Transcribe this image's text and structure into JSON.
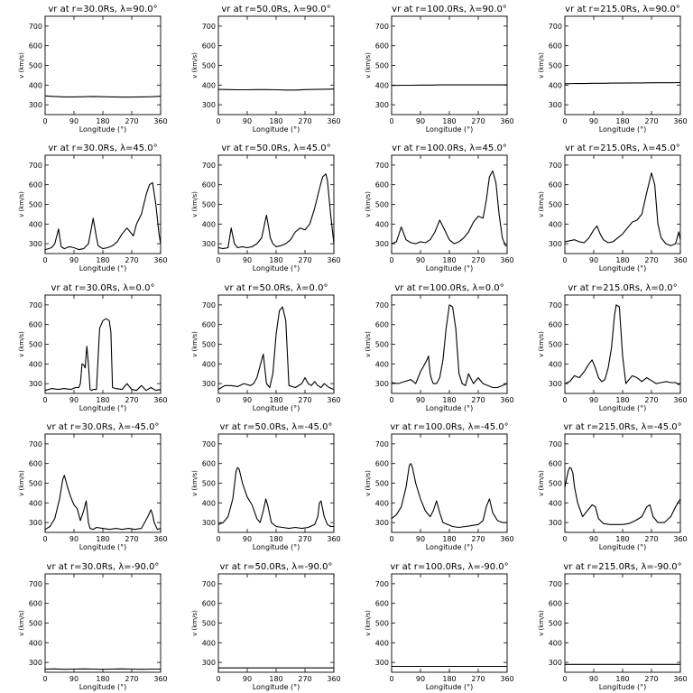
{
  "chart_data": {
    "type": "line",
    "layout": "5x4 grid of small multiples",
    "xlabel": "Longitude (°)",
    "ylabel": "v (km/s)",
    "xlim": [
      0,
      360
    ],
    "ylim": [
      250,
      750
    ],
    "xticks": [
      0,
      90,
      180,
      270,
      360
    ],
    "yticks": [
      300,
      400,
      500,
      600,
      700
    ],
    "grid": false,
    "line_color": "#000000",
    "panels": [
      {
        "title": "vr at r=30.0Rs, λ=90.0°",
        "x": [
          0,
          30,
          60,
          90,
          120,
          150,
          180,
          210,
          240,
          270,
          300,
          330,
          360
        ],
        "y": [
          345,
          342,
          340,
          340,
          341,
          342,
          341,
          340,
          339,
          339,
          340,
          341,
          343
        ]
      },
      {
        "title": "vr at r=50.0Rs, λ=90.0°",
        "x": [
          0,
          30,
          60,
          90,
          120,
          150,
          180,
          210,
          240,
          270,
          300,
          330,
          360
        ],
        "y": [
          378,
          377,
          376,
          376,
          377,
          377,
          376,
          375,
          375,
          377,
          378,
          379,
          380
        ]
      },
      {
        "title": "vr at r=100.0Rs, λ=90.0°",
        "x": [
          0,
          30,
          60,
          90,
          120,
          150,
          180,
          210,
          240,
          270,
          300,
          330,
          360
        ],
        "y": [
          398,
          399,
          399,
          400,
          400,
          401,
          401,
          401,
          401,
          401,
          401,
          401,
          401
        ]
      },
      {
        "title": "vr at r=215.0Rs, λ=90.0°",
        "x": [
          0,
          30,
          60,
          90,
          120,
          150,
          180,
          210,
          240,
          270,
          300,
          330,
          360
        ],
        "y": [
          407,
          408,
          408,
          409,
          409,
          410,
          410,
          411,
          411,
          412,
          412,
          412,
          413
        ]
      },
      {
        "title": "vr at r=30.0Rs, λ=45.0°",
        "x": [
          0,
          10,
          20,
          30,
          42,
          50,
          60,
          75,
          90,
          105,
          120,
          135,
          150,
          158,
          165,
          180,
          195,
          210,
          225,
          240,
          255,
          265,
          275,
          285,
          300,
          315,
          325,
          335,
          345,
          355,
          360
        ],
        "y": [
          270,
          275,
          280,
          300,
          375,
          285,
          275,
          285,
          280,
          270,
          275,
          300,
          430,
          350,
          290,
          275,
          280,
          290,
          310,
          350,
          380,
          360,
          340,
          400,
          450,
          550,
          600,
          610,
          500,
          350,
          300
        ]
      },
      {
        "title": "vr at r=50.0Rs, λ=45.0°",
        "x": [
          0,
          15,
          30,
          40,
          50,
          60,
          75,
          90,
          105,
          120,
          135,
          150,
          155,
          162,
          170,
          180,
          195,
          210,
          225,
          240,
          255,
          270,
          285,
          300,
          315,
          325,
          335,
          340,
          350,
          360
        ],
        "y": [
          280,
          275,
          280,
          380,
          300,
          280,
          285,
          280,
          285,
          300,
          330,
          445,
          400,
          330,
          300,
          285,
          290,
          300,
          320,
          360,
          380,
          370,
          400,
          480,
          580,
          640,
          655,
          620,
          450,
          300
        ]
      },
      {
        "title": "vr at r=100.0Rs, λ=45.0°",
        "x": [
          0,
          15,
          30,
          45,
          60,
          75,
          90,
          105,
          120,
          135,
          150,
          165,
          180,
          195,
          210,
          225,
          240,
          255,
          270,
          285,
          295,
          305,
          315,
          325,
          335,
          345,
          355,
          360
        ],
        "y": [
          300,
          310,
          385,
          320,
          305,
          300,
          310,
          305,
          320,
          360,
          420,
          370,
          320,
          300,
          310,
          330,
          360,
          410,
          440,
          430,
          520,
          640,
          670,
          610,
          450,
          330,
          290,
          290
        ]
      },
      {
        "title": "vr at r=215.0Rs, λ=45.0°",
        "x": [
          0,
          15,
          30,
          45,
          60,
          75,
          90,
          100,
          110,
          120,
          135,
          150,
          165,
          180,
          195,
          210,
          225,
          240,
          255,
          270,
          280,
          290,
          300,
          315,
          330,
          345,
          355,
          360
        ],
        "y": [
          310,
          315,
          320,
          310,
          305,
          330,
          370,
          390,
          350,
          320,
          305,
          310,
          330,
          350,
          380,
          410,
          420,
          450,
          560,
          660,
          600,
          400,
          330,
          300,
          290,
          300,
          360,
          320
        ]
      },
      {
        "title": "vr at r=30.0Rs, λ=0.0°",
        "x": [
          0,
          20,
          40,
          60,
          80,
          95,
          105,
          110,
          115,
          120,
          125,
          130,
          135,
          140,
          145,
          150,
          160,
          170,
          180,
          190,
          200,
          205,
          210,
          220,
          240,
          255,
          270,
          285,
          300,
          315,
          330,
          345,
          360
        ],
        "y": [
          265,
          275,
          270,
          275,
          270,
          280,
          280,
          300,
          400,
          395,
          380,
          490,
          400,
          270,
          265,
          270,
          270,
          580,
          620,
          630,
          620,
          560,
          280,
          275,
          270,
          300,
          270,
          265,
          290,
          265,
          280,
          265,
          270
        ]
      },
      {
        "title": "vr at r=50.0Rs, λ=0.0°",
        "x": [
          0,
          20,
          40,
          60,
          80,
          100,
          110,
          120,
          130,
          135,
          140,
          150,
          160,
          170,
          180,
          190,
          200,
          210,
          220,
          240,
          260,
          270,
          280,
          290,
          300,
          310,
          320,
          330,
          345,
          360
        ],
        "y": [
          270,
          290,
          290,
          285,
          300,
          290,
          300,
          330,
          390,
          420,
          450,
          300,
          280,
          350,
          550,
          670,
          690,
          620,
          290,
          280,
          300,
          330,
          300,
          290,
          310,
          290,
          280,
          300,
          280,
          270
        ]
      },
      {
        "title": "vr at r=100.0Rs, λ=0.0°",
        "x": [
          0,
          20,
          40,
          60,
          75,
          90,
          100,
          110,
          115,
          120,
          125,
          130,
          140,
          150,
          160,
          170,
          180,
          190,
          200,
          210,
          220,
          230,
          240,
          255,
          270,
          285,
          300,
          315,
          330,
          345,
          360
        ],
        "y": [
          305,
          300,
          310,
          320,
          300,
          360,
          390,
          420,
          440,
          350,
          320,
          300,
          300,
          330,
          420,
          580,
          700,
          690,
          580,
          350,
          300,
          290,
          350,
          300,
          330,
          300,
          290,
          280,
          280,
          290,
          300
        ]
      },
      {
        "title": "vr at r=215.0Rs, λ=0.0°",
        "x": [
          0,
          15,
          30,
          45,
          60,
          75,
          85,
          95,
          105,
          115,
          125,
          135,
          145,
          155,
          160,
          170,
          180,
          190,
          200,
          210,
          225,
          240,
          255,
          270,
          285,
          300,
          315,
          330,
          345,
          355,
          360
        ],
        "y": [
          300,
          310,
          340,
          330,
          360,
          400,
          420,
          380,
          330,
          310,
          320,
          380,
          480,
          650,
          700,
          690,
          440,
          300,
          320,
          340,
          330,
          310,
          330,
          315,
          300,
          305,
          310,
          305,
          305,
          295,
          300
        ]
      },
      {
        "title": "vr at r=30.0Rs, λ=-45.0°",
        "x": [
          0,
          15,
          30,
          45,
          55,
          60,
          70,
          80,
          90,
          100,
          110,
          120,
          128,
          135,
          140,
          150,
          160,
          180,
          200,
          220,
          240,
          260,
          280,
          300,
          320,
          330,
          335,
          340,
          350,
          360
        ],
        "y": [
          265,
          280,
          320,
          420,
          520,
          540,
          480,
          430,
          390,
          370,
          310,
          360,
          410,
          300,
          270,
          265,
          275,
          270,
          265,
          270,
          265,
          270,
          265,
          270,
          330,
          365,
          340,
          300,
          265,
          270
        ]
      },
      {
        "title": "vr at r=50.0Rs, λ=-45.0°",
        "x": [
          0,
          15,
          30,
          45,
          55,
          60,
          65,
          75,
          90,
          105,
          120,
          130,
          140,
          148,
          155,
          165,
          180,
          200,
          220,
          240,
          260,
          280,
          300,
          310,
          315,
          320,
          330,
          340,
          350,
          360
        ],
        "y": [
          290,
          300,
          330,
          420,
          560,
          580,
          570,
          500,
          430,
          390,
          320,
          300,
          360,
          420,
          380,
          300,
          280,
          275,
          270,
          275,
          270,
          275,
          290,
          330,
          400,
          410,
          330,
          290,
          280,
          280
        ]
      },
      {
        "title": "vr at r=100.0Rs, λ=-45.0°",
        "x": [
          0,
          15,
          30,
          45,
          55,
          60,
          65,
          75,
          90,
          105,
          120,
          130,
          140,
          150,
          160,
          175,
          190,
          210,
          230,
          250,
          270,
          285,
          295,
          305,
          315,
          330,
          345,
          360
        ],
        "y": [
          320,
          340,
          380,
          480,
          590,
          600,
          580,
          500,
          420,
          360,
          330,
          360,
          410,
          350,
          300,
          290,
          280,
          275,
          280,
          285,
          290,
          310,
          380,
          420,
          350,
          310,
          300,
          300
        ]
      },
      {
        "title": "vr at r=215.0Rs, λ=-45.0°",
        "x": [
          0,
          5,
          10,
          15,
          20,
          25,
          30,
          40,
          55,
          70,
          85,
          95,
          105,
          120,
          140,
          160,
          180,
          200,
          220,
          240,
          255,
          265,
          275,
          290,
          310,
          330,
          345,
          360
        ],
        "y": [
          480,
          520,
          560,
          580,
          575,
          550,
          480,
          400,
          330,
          360,
          390,
          380,
          320,
          295,
          290,
          290,
          290,
          295,
          310,
          330,
          380,
          390,
          330,
          300,
          300,
          330,
          380,
          420
        ]
      },
      {
        "title": "vr at r=30.0Rs, λ=-90.0°",
        "x": [
          0,
          30,
          60,
          90,
          120,
          150,
          180,
          210,
          240,
          270,
          300,
          330,
          360
        ],
        "y": [
          266,
          267,
          265,
          266,
          267,
          266,
          265,
          266,
          267,
          266,
          265,
          266,
          266
        ]
      },
      {
        "title": "vr at r=50.0Rs, λ=-90.0°",
        "x": [
          0,
          90,
          180,
          270,
          360
        ],
        "y": [
          272,
          272,
          272,
          272,
          272
        ]
      },
      {
        "title": "vr at r=100.0Rs, λ=-90.0°",
        "x": [
          0,
          90,
          180,
          270,
          360
        ],
        "y": [
          280,
          280,
          280,
          280,
          280
        ]
      },
      {
        "title": "vr at r=215.0Rs, λ=-90.0°",
        "x": [
          0,
          90,
          180,
          270,
          360
        ],
        "y": [
          290,
          290,
          290,
          290,
          290
        ]
      }
    ]
  }
}
